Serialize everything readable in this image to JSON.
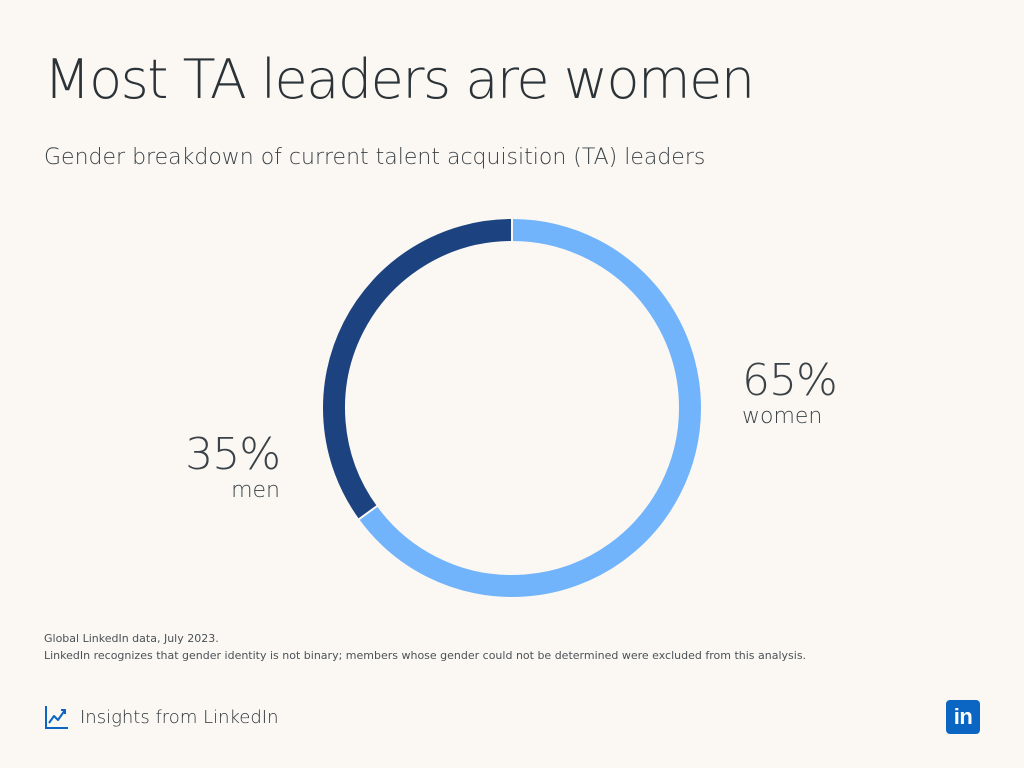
{
  "title": "Most TA leaders are women",
  "subtitle": "Gender breakdown of current talent acquisition (TA) leaders",
  "chart_data": {
    "type": "pie",
    "style": "donut",
    "categories": [
      "women",
      "men"
    ],
    "values": [
      65,
      35
    ],
    "labels": [
      {
        "value": "65%",
        "category": "women"
      },
      {
        "value": "35%",
        "category": "men"
      }
    ],
    "colors": [
      "#72b4fb",
      "#1c4380"
    ]
  },
  "footnotes": [
    "Global LinkedIn data, July 2023.",
    "LinkedIn recognizes that gender identity is not binary; members whose gender could not be determined were excluded from this analysis."
  ],
  "branding": {
    "insights_text": "Insights from LinkedIn",
    "insights_icon": "trend-line-chart-icon",
    "logo_icon": "linkedin-logo-icon",
    "logo_text": "in"
  }
}
